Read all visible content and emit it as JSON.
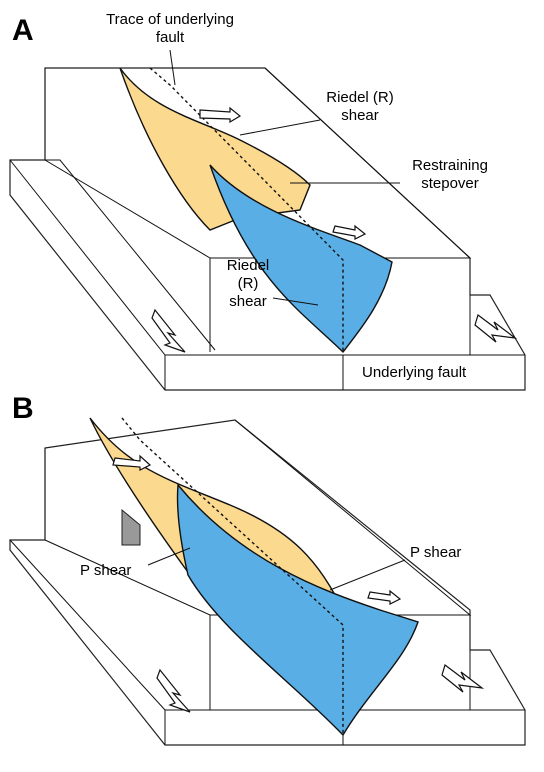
{
  "panels": [
    {
      "label": "A",
      "annotations": [
        {
          "lines": [
            "Trace of underlying",
            "fault"
          ]
        },
        {
          "lines": [
            "Riedel (R)",
            "shear"
          ]
        },
        {
          "lines": [
            "Restraining",
            "stepover"
          ]
        },
        {
          "lines": [
            "Riedel",
            "(R)",
            "shear"
          ]
        },
        {
          "lines": [
            "Underlying fault"
          ]
        }
      ]
    },
    {
      "label": "B",
      "annotations": [
        {
          "lines": [
            "P shear"
          ]
        },
        {
          "lines": [
            "P shear"
          ]
        }
      ]
    }
  ]
}
